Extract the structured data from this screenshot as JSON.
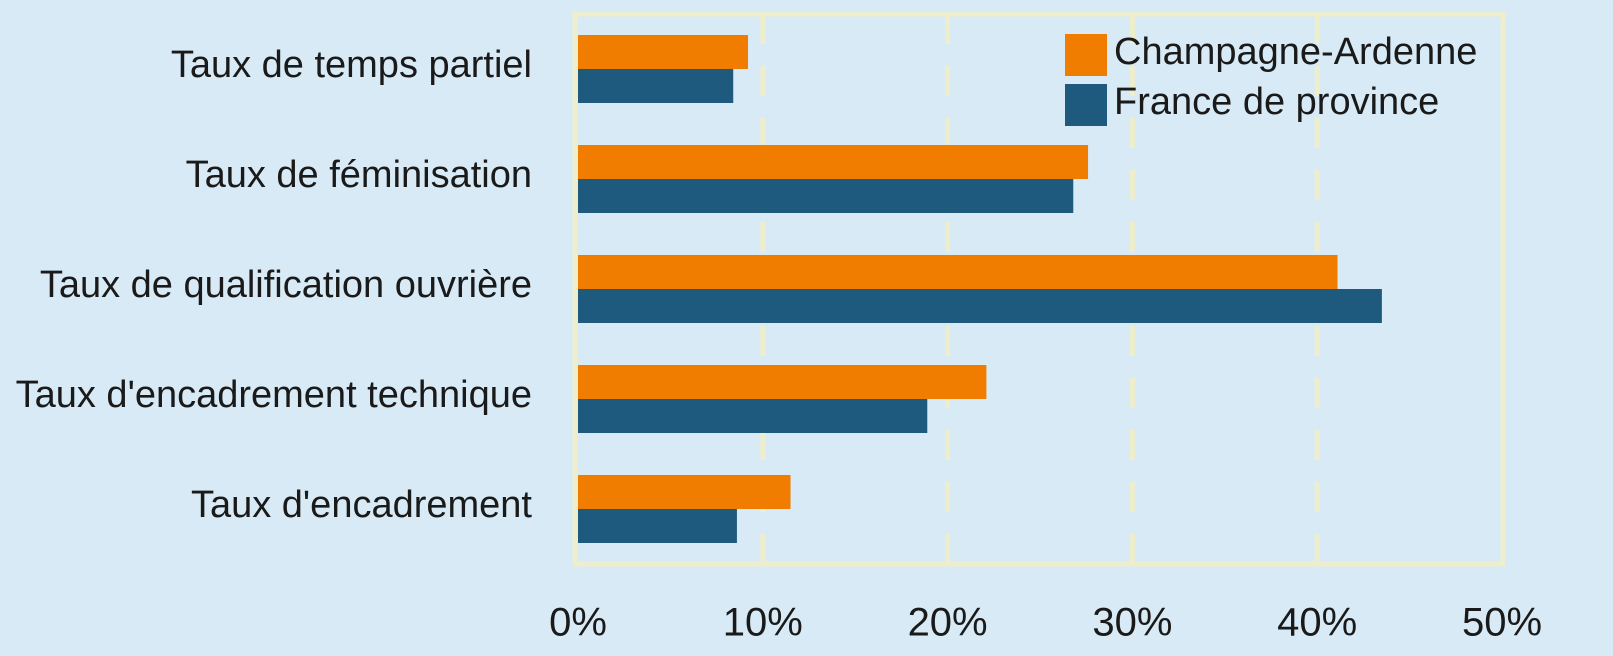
{
  "chart_data": {
    "type": "barh",
    "categories": [
      "Taux de temps partiel",
      "Taux de féminisation",
      "Taux de qualification ouvrière",
      "Taux d'encadrement technique",
      "Taux d'encadrement"
    ],
    "series": [
      {
        "name": "Champagne-Ardenne",
        "color": "#f07d00",
        "values": [
          9.2,
          27.6,
          41.1,
          22.1,
          11.5
        ]
      },
      {
        "name": "France de province",
        "color": "#1e5a7d",
        "values": [
          8.4,
          26.8,
          43.5,
          18.9,
          8.6
        ]
      }
    ],
    "xlim": [
      0,
      50
    ],
    "xticks": [
      {
        "value": 0,
        "label": "0%"
      },
      {
        "value": 10,
        "label": "10%"
      },
      {
        "value": 20,
        "label": "20%"
      },
      {
        "value": 30,
        "label": "30%"
      },
      {
        "value": 40,
        "label": "40%"
      },
      {
        "value": 50,
        "label": "50%"
      }
    ],
    "grid": true,
    "legend": "upper right"
  }
}
